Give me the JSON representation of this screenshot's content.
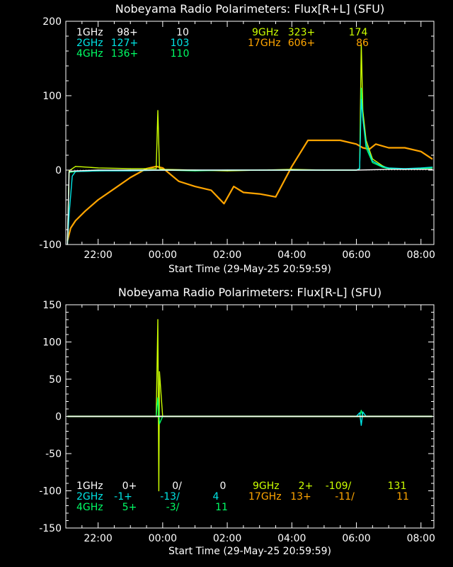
{
  "colors": {
    "1GHz": "#ffffff",
    "2GHz": "#00e5e5",
    "4GHz": "#00ff66",
    "9GHz": "#ccff00",
    "17GHz": "#ffa500",
    "axis": "#ffffff"
  },
  "chart_data": [
    {
      "type": "line",
      "title": "Nobeyama Radio Polarimeters: Flux[R+L] (SFU)",
      "xlabel": "Start Time (29-May-25 20:59:59)",
      "x_tick_labels": [
        "22:00",
        "00:00",
        "02:00",
        "04:00",
        "06:00",
        "08:00"
      ],
      "x_tick_hours": [
        1.0,
        3.0,
        5.0,
        7.0,
        9.0,
        11.0
      ],
      "xlim_hours": [
        0,
        11.4
      ],
      "ylim": [
        -100,
        200
      ],
      "y_major_ticks": [
        -100,
        0,
        100,
        200
      ],
      "legend": [
        {
          "freq": "1GHz",
          "a": "98+",
          "b": "10"
        },
        {
          "freq": "2GHz",
          "a": "127+",
          "b": "103"
        },
        {
          "freq": "4GHz",
          "a": "136+",
          "b": "110"
        },
        {
          "freq": "9GHz",
          "a": "323+",
          "b": "174"
        },
        {
          "freq": "17GHz",
          "a": "606+",
          "b": "86"
        }
      ],
      "series": [
        {
          "name": "17GHz",
          "x": [
            0.05,
            0.15,
            0.3,
            0.6,
            1.0,
            1.5,
            2.0,
            2.5,
            2.8,
            3.0,
            3.5,
            4.0,
            4.5,
            4.9,
            5.2,
            5.5,
            6.0,
            6.5,
            7.0,
            7.5,
            8.0,
            8.5,
            9.0,
            9.2,
            9.4,
            9.6,
            10.0,
            10.5,
            11.0,
            11.35
          ],
          "y": [
            -95,
            -78,
            -68,
            -55,
            -40,
            -25,
            -10,
            2,
            5,
            3,
            -15,
            -22,
            -27,
            -45,
            -22,
            -30,
            -32,
            -36,
            5,
            40,
            40,
            40,
            35,
            30,
            28,
            35,
            30,
            30,
            25,
            15
          ]
        },
        {
          "name": "9GHz",
          "x": [
            0.05,
            0.1,
            0.3,
            1.0,
            2.0,
            2.8,
            2.85,
            2.9,
            3.0,
            4.0,
            5.0,
            6.0,
            7.0,
            8.0,
            9.0,
            9.1,
            9.15,
            9.2,
            9.3,
            9.5,
            9.8,
            10.0,
            10.5,
            11.0,
            11.35
          ],
          "y": [
            -100,
            -1,
            5,
            3,
            2,
            2,
            80,
            2,
            1,
            0,
            -1,
            0,
            1,
            0,
            0,
            2,
            170,
            80,
            40,
            15,
            6,
            2,
            1,
            2,
            3
          ]
        },
        {
          "name": "4GHz",
          "x": [
            0.05,
            0.1,
            0.3,
            1.0,
            2.0,
            3.0,
            4.0,
            5.0,
            6.0,
            7.0,
            8.0,
            9.0,
            9.1,
            9.15,
            9.2,
            9.3,
            9.5,
            9.8,
            10.0,
            10.5,
            11.0,
            11.35
          ],
          "y": [
            -100,
            -3,
            -2,
            -1,
            0,
            0,
            -1,
            0,
            0,
            0,
            0,
            0,
            2,
            110,
            70,
            30,
            10,
            4,
            2,
            1,
            2,
            3
          ]
        },
        {
          "name": "2GHz",
          "x": [
            0.05,
            0.1,
            0.2,
            0.3,
            1.0,
            2.0,
            3.0,
            4.0,
            5.0,
            6.0,
            7.0,
            8.0,
            9.0,
            9.1,
            9.15,
            9.2,
            9.3,
            9.5,
            9.8,
            10.0,
            10.5,
            11.0,
            11.35
          ],
          "y": [
            -100,
            -60,
            -8,
            -2,
            -1,
            -1,
            0,
            0,
            0,
            0,
            0,
            0,
            0,
            2,
            95,
            70,
            35,
            12,
            5,
            3,
            2,
            3,
            4
          ]
        },
        {
          "name": "1GHz",
          "x": [
            0.05,
            0.1,
            0.3,
            1.0,
            2.0,
            3.0,
            4.0,
            5.0,
            6.0,
            7.0,
            8.0,
            9.0,
            10.0,
            11.0,
            11.35
          ],
          "y": [
            -100,
            -2,
            -1,
            0,
            0,
            0,
            0,
            0,
            0,
            0,
            0,
            0,
            1,
            1,
            1
          ]
        }
      ]
    },
    {
      "type": "line",
      "title": "Nobeyama Radio Polarimeters: Flux[R-L] (SFU)",
      "xlabel": "Start Time (29-May-25 20:59:59)",
      "x_tick_labels": [
        "22:00",
        "00:00",
        "02:00",
        "04:00",
        "06:00",
        "08:00"
      ],
      "x_tick_hours": [
        1.0,
        3.0,
        5.0,
        7.0,
        9.0,
        11.0
      ],
      "xlim_hours": [
        0,
        11.4
      ],
      "ylim": [
        -150,
        150
      ],
      "y_major_ticks": [
        -150,
        -100,
        -50,
        0,
        50,
        100,
        150
      ],
      "legend": [
        {
          "freq": "1GHz",
          "a": "0+",
          "b": "0/",
          "c": "0"
        },
        {
          "freq": "2GHz",
          "a": "-1+",
          "b": "-13/",
          "c": "4"
        },
        {
          "freq": "4GHz",
          "a": "5+",
          "b": "-3/",
          "c": "11"
        },
        {
          "freq": "9GHz",
          "a": "2+",
          "b": "-109/",
          "c": "131"
        },
        {
          "freq": "17GHz",
          "a": "13+",
          "b": "-11/",
          "c": "11"
        }
      ],
      "series": [
        {
          "name": "17GHz",
          "x": [
            0.05,
            1.0,
            2.0,
            3.0,
            4.0,
            5.0,
            6.0,
            7.0,
            8.0,
            9.0,
            10.0,
            11.0,
            11.35
          ],
          "y": [
            0,
            0,
            0,
            0,
            0,
            0,
            0,
            0,
            0,
            0,
            0,
            0,
            0
          ]
        },
        {
          "name": "9GHz",
          "x": [
            0.05,
            2.8,
            2.85,
            2.88,
            2.9,
            3.0,
            6.0,
            9.0,
            11.35
          ],
          "y": [
            0,
            0,
            130,
            -100,
            60,
            0,
            0,
            0,
            0
          ]
        },
        {
          "name": "4GHz",
          "x": [
            0.05,
            2.8,
            2.85,
            2.9,
            3.0,
            9.1,
            9.15,
            9.2,
            11.35
          ],
          "y": [
            0,
            0,
            25,
            -10,
            0,
            0,
            8,
            0,
            0
          ]
        },
        {
          "name": "2GHz",
          "x": [
            0.05,
            9.0,
            9.1,
            9.15,
            9.2,
            9.3,
            11.35
          ],
          "y": [
            0,
            0,
            5,
            -12,
            6,
            0,
            0
          ]
        },
        {
          "name": "1GHz",
          "x": [
            0.05,
            11.35
          ],
          "y": [
            0,
            0
          ]
        }
      ]
    }
  ]
}
